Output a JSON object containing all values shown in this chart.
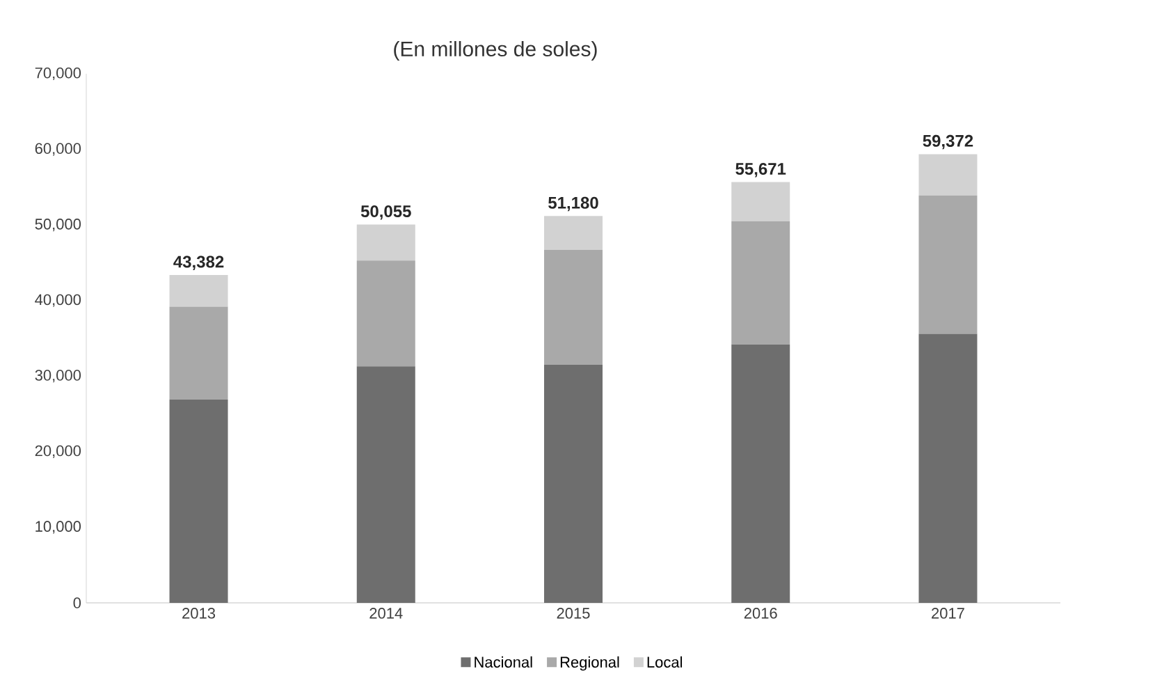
{
  "chart_data": {
    "type": "bar",
    "stacked": true,
    "title": "(En millones de soles)",
    "categories": [
      "2013",
      "2014",
      "2015",
      "2016",
      "2017"
    ],
    "series": [
      {
        "name": "Nacional",
        "color": "#6e6e6e",
        "values": [
          26900,
          31300,
          31500,
          34200,
          35600
        ]
      },
      {
        "name": "Regional",
        "color": "#a9a9a9",
        "values": [
          12300,
          14000,
          15200,
          16300,
          18300
        ]
      },
      {
        "name": "Local",
        "color": "#d2d2d2",
        "values": [
          4182,
          4755,
          4480,
          5171,
          5472
        ]
      }
    ],
    "totals": [
      "43,382",
      "50,055",
      "51,180",
      "55,671",
      "59,372"
    ],
    "ylim": [
      0,
      70000
    ],
    "yticks": [
      {
        "value": 0,
        "label": "0"
      },
      {
        "value": 10000,
        "label": "10,000"
      },
      {
        "value": 20000,
        "label": "20,000"
      },
      {
        "value": 30000,
        "label": "30,000"
      },
      {
        "value": 40000,
        "label": "40,000"
      },
      {
        "value": 50000,
        "label": "50,000"
      },
      {
        "value": 60000,
        "label": "60,000"
      },
      {
        "value": 70000,
        "label": "70,000"
      }
    ],
    "legend": "bottom"
  }
}
